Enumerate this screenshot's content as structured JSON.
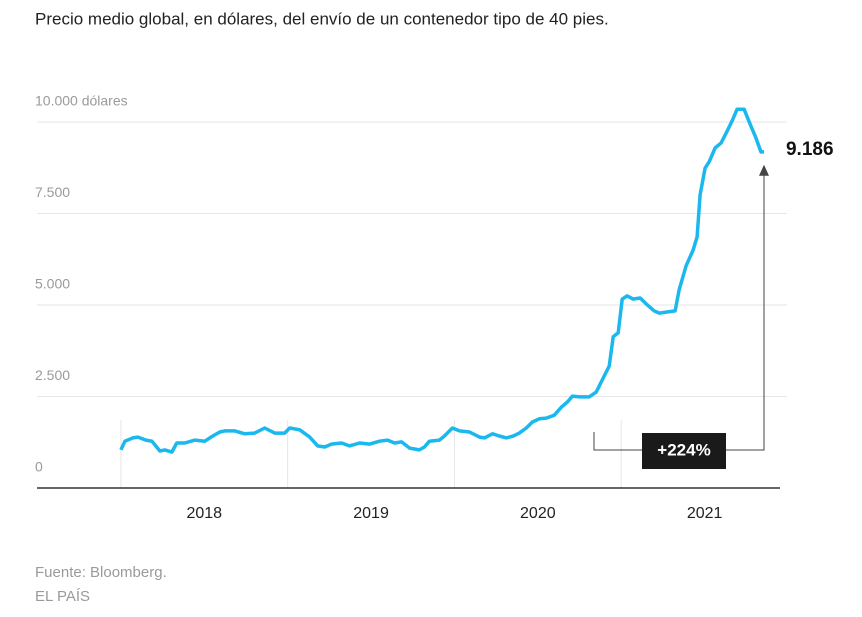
{
  "chart_data": {
    "type": "line",
    "title": "Precio medio global, en dólares, del envío de un contenedor tipo de 40 pies.",
    "source": "Fuente: Bloomberg.",
    "brand": "EL PAÍS",
    "x": [
      2018.0,
      2018.024,
      2018.072,
      2018.102,
      2018.15,
      2018.186,
      2018.234,
      2018.263,
      2018.305,
      2018.335,
      2018.383,
      2018.443,
      2018.503,
      2018.551,
      2018.593,
      2018.623,
      2018.683,
      2018.743,
      2018.802,
      2018.862,
      2018.922,
      2018.982,
      2019.012,
      2019.072,
      2019.132,
      2019.18,
      2019.222,
      2019.263,
      2019.323,
      2019.371,
      2019.431,
      2019.491,
      2019.551,
      2019.599,
      2019.641,
      2019.683,
      2019.731,
      2019.79,
      2019.82,
      2019.85,
      2019.91,
      2019.94,
      2019.988,
      2020.03,
      2020.09,
      2020.15,
      2020.18,
      2020.228,
      2020.269,
      2020.311,
      2020.353,
      2020.389,
      2020.431,
      2020.467,
      2020.509,
      2020.551,
      2020.599,
      2020.641,
      2020.677,
      2020.707,
      2020.749,
      2020.808,
      2020.85,
      2020.886,
      2020.928,
      2020.952,
      2020.982,
      2021.006,
      2021.036,
      2021.072,
      2021.114,
      2021.15,
      2021.198,
      2021.228,
      2021.275,
      2021.323,
      2021.347,
      2021.389,
      2021.431,
      2021.455,
      2021.473,
      2021.503,
      2021.527,
      2021.563,
      2021.599,
      2021.635,
      2021.665,
      2021.695,
      2021.737,
      2021.772,
      2021.808,
      2021.838,
      2021.856
    ],
    "series": [
      {
        "name": "Precio medio global",
        "color": "#1ab8ee",
        "values": [
          1040,
          1280,
          1370,
          1390,
          1310,
          1280,
          1010,
          1040,
          980,
          1230,
          1230,
          1310,
          1280,
          1420,
          1530,
          1560,
          1560,
          1480,
          1500,
          1640,
          1500,
          1500,
          1640,
          1590,
          1390,
          1150,
          1120,
          1200,
          1230,
          1150,
          1230,
          1200,
          1280,
          1310,
          1230,
          1260,
          1090,
          1040,
          1120,
          1280,
          1310,
          1420,
          1640,
          1560,
          1530,
          1390,
          1370,
          1480,
          1420,
          1370,
          1420,
          1500,
          1640,
          1800,
          1890,
          1910,
          1990,
          2210,
          2350,
          2510,
          2490,
          2490,
          2620,
          2950,
          3330,
          4130,
          4240,
          5160,
          5250,
          5160,
          5190,
          5030,
          4840,
          4780,
          4810,
          4840,
          5410,
          6070,
          6500,
          6860,
          8010,
          8740,
          8910,
          9290,
          9430,
          9750,
          10030,
          10350,
          10350,
          9950,
          9560,
          9180,
          9186
        ]
      }
    ],
    "end_label": {
      "value": 9186,
      "label": "9.186"
    },
    "change_label": {
      "value": 224,
      "label": "+224%"
    },
    "xlim": [
      2017.497,
      2021.952
    ],
    "xticks": [
      {
        "value": 2018.5,
        "label": "2018"
      },
      {
        "value": 2019.5,
        "label": "2019"
      },
      {
        "value": 2020.5,
        "label": "2020"
      },
      {
        "value": 2021.5,
        "label": "2021"
      }
    ],
    "xgrid": [
      2018,
      2019,
      2020,
      2021
    ],
    "ylim": [
      0,
      10000
    ],
    "yticks": [
      0,
      {
        "value": 2500,
        "label": "2.500"
      },
      {
        "value": 5000,
        "label": "5.000"
      },
      {
        "value": 7500,
        "label": "7.500"
      },
      {
        "value": 10000,
        "label": "10.000 dólares"
      }
    ],
    "grid": true
  }
}
